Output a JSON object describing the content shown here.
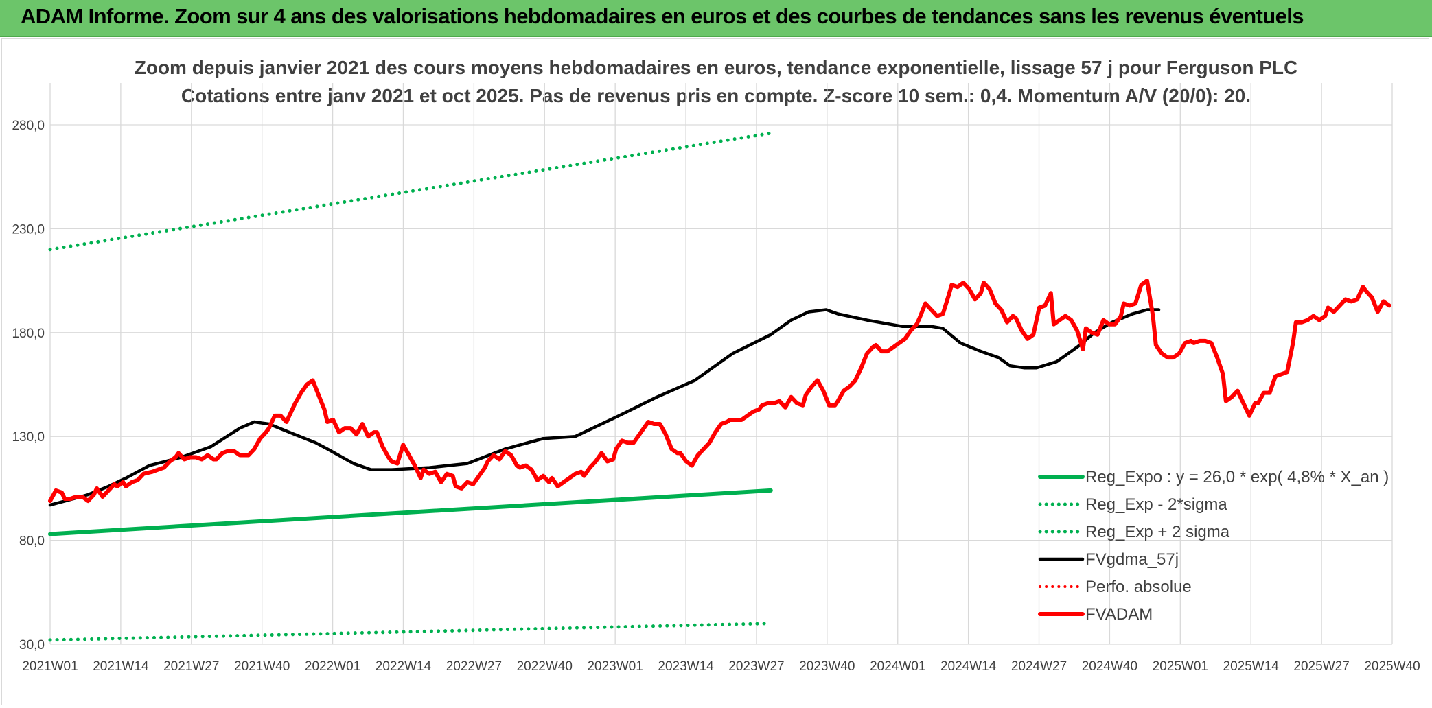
{
  "banner": {
    "title": "ADAM Informe. Zoom sur 4 ans des valorisations hebdomadaires en euros et des courbes de tendances sans les revenus éventuels"
  },
  "chart_data": {
    "type": "line",
    "title": "Zoom depuis janvier 2021 des cours moyens hebdomadaires en euros, tendance exponentielle, lissage 57 j pour Ferguson PLC",
    "subtitle": "Cotations entre janv 2021 et oct 2025. Pas de revenus pris en compte. Z-score 10 sem.: 0,4. Momentum A/V (20/0): 20.",
    "xlabel": "",
    "ylabel": "",
    "ylim": [
      30,
      280
    ],
    "yticks": [
      "280,0",
      "230,0",
      "180,0",
      "130,0",
      "80,0",
      "30,0"
    ],
    "ytick_values": [
      280,
      230,
      180,
      130,
      80,
      30
    ],
    "xticks": [
      "2021W01",
      "2021W14",
      "2021W27",
      "2021W40",
      "2022W01",
      "2022W14",
      "2022W27",
      "2022W40",
      "2023W01",
      "2023W14",
      "2023W27",
      "2023W40",
      "2024W01",
      "2024W14",
      "2024W27",
      "2024W40",
      "2025W01",
      "2025W14",
      "2025W27",
      "2025W40"
    ],
    "grid": true,
    "legend_position": "bottom-right",
    "series": [
      {
        "name": "Reg_Expo : y = 26,0 * exp( 4,8% *  X_an )",
        "color": "#00b050",
        "style": "solid",
        "points": [
          [
            0,
            83
          ],
          [
            247,
            104
          ]
        ]
      },
      {
        "name": "Reg_Exp - 2*sigma",
        "color": "#00b050",
        "style": "dotted",
        "points": [
          [
            0,
            32
          ],
          [
            247,
            40
          ]
        ]
      },
      {
        "name": "Reg_Exp + 2 sigma",
        "color": "#00b050",
        "style": "dotted",
        "points": [
          [
            0,
            220
          ],
          [
            247,
            276
          ]
        ]
      },
      {
        "name": "FVgdma_57j",
        "color": "#000000",
        "style": "solid",
        "points": [
          [
            0,
            97
          ],
          [
            8,
            100
          ],
          [
            13,
            102
          ],
          [
            20,
            106
          ],
          [
            26,
            110
          ],
          [
            34,
            116
          ],
          [
            45,
            120
          ],
          [
            55,
            125
          ],
          [
            65,
            134
          ],
          [
            70,
            137
          ],
          [
            75,
            136
          ],
          [
            82,
            132
          ],
          [
            91,
            127
          ],
          [
            95,
            124
          ],
          [
            104,
            117
          ],
          [
            110,
            114
          ],
          [
            117,
            114
          ],
          [
            130,
            115
          ],
          [
            143,
            117
          ],
          [
            156,
            124
          ],
          [
            169,
            129
          ],
          [
            180,
            130
          ],
          [
            195,
            140
          ],
          [
            208,
            149
          ],
          [
            221,
            157
          ],
          [
            234,
            170
          ],
          [
            247,
            179
          ],
          [
            254,
            186
          ],
          [
            260,
            190
          ],
          [
            266,
            191
          ],
          [
            270,
            189
          ],
          [
            280,
            186
          ],
          [
            292,
            183
          ],
          [
            302,
            183
          ],
          [
            306,
            182
          ],
          [
            312,
            175
          ],
          [
            319,
            171
          ],
          [
            325,
            168
          ],
          [
            329,
            164
          ],
          [
            334,
            163
          ],
          [
            338,
            163
          ],
          [
            345,
            166
          ],
          [
            352,
            173
          ],
          [
            358,
            180
          ],
          [
            364,
            185
          ],
          [
            371,
            189
          ],
          [
            376,
            191
          ],
          [
            380,
            191
          ]
        ]
      },
      {
        "name": "Perfo. absolue",
        "color": "#ff0000",
        "style": "dotted",
        "points": []
      },
      {
        "name": "FVADAM",
        "color": "#ff0000",
        "style": "solid",
        "points": [
          [
            0,
            99
          ],
          [
            2,
            104
          ],
          [
            4,
            103
          ],
          [
            5,
            100
          ],
          [
            7,
            100
          ],
          [
            9,
            101
          ],
          [
            11,
            101
          ],
          [
            13,
            99
          ],
          [
            15,
            102
          ],
          [
            16,
            105
          ],
          [
            18,
            101
          ],
          [
            20,
            104
          ],
          [
            22,
            107
          ],
          [
            23,
            106
          ],
          [
            25,
            108
          ],
          [
            26,
            106
          ],
          [
            28,
            108
          ],
          [
            30,
            109
          ],
          [
            32,
            112
          ],
          [
            35,
            113
          ],
          [
            37,
            114
          ],
          [
            39,
            115
          ],
          [
            41,
            118
          ],
          [
            43,
            120
          ],
          [
            44,
            122
          ],
          [
            46,
            119
          ],
          [
            48,
            120
          ],
          [
            50,
            120
          ],
          [
            52,
            119
          ],
          [
            54,
            121
          ],
          [
            56,
            119
          ],
          [
            57,
            119
          ],
          [
            59,
            122
          ],
          [
            61,
            123
          ],
          [
            63,
            123
          ],
          [
            65,
            121
          ],
          [
            68,
            121
          ],
          [
            70,
            124
          ],
          [
            72,
            129
          ],
          [
            74,
            132
          ],
          [
            75,
            134
          ],
          [
            77,
            140
          ],
          [
            79,
            140
          ],
          [
            81,
            137
          ],
          [
            82,
            140
          ],
          [
            84,
            146
          ],
          [
            86,
            151
          ],
          [
            88,
            155
          ],
          [
            90,
            157
          ],
          [
            92,
            150
          ],
          [
            94,
            143
          ],
          [
            95,
            137
          ],
          [
            97,
            138
          ],
          [
            99,
            132
          ],
          [
            101,
            134
          ],
          [
            103,
            134
          ],
          [
            105,
            131
          ],
          [
            107,
            136
          ],
          [
            109,
            130
          ],
          [
            111,
            132
          ],
          [
            112,
            132
          ],
          [
            114,
            125
          ],
          [
            116,
            120
          ],
          [
            117,
            118
          ],
          [
            119,
            117
          ],
          [
            121,
            126
          ],
          [
            123,
            121
          ],
          [
            125,
            116
          ],
          [
            127,
            110
          ],
          [
            128,
            114
          ],
          [
            130,
            112
          ],
          [
            132,
            113
          ],
          [
            134,
            108
          ],
          [
            136,
            112
          ],
          [
            138,
            111
          ],
          [
            139,
            106
          ],
          [
            141,
            105
          ],
          [
            143,
            108
          ],
          [
            145,
            107
          ],
          [
            147,
            111
          ],
          [
            149,
            115
          ],
          [
            150,
            118
          ],
          [
            152,
            121
          ],
          [
            154,
            119
          ],
          [
            156,
            123
          ],
          [
            158,
            121
          ],
          [
            160,
            116
          ],
          [
            161,
            115
          ],
          [
            163,
            116
          ],
          [
            165,
            114
          ],
          [
            167,
            109
          ],
          [
            169,
            111
          ],
          [
            171,
            108
          ],
          [
            172,
            110
          ],
          [
            174,
            106
          ],
          [
            176,
            108
          ],
          [
            178,
            110
          ],
          [
            180,
            112
          ],
          [
            182,
            113
          ],
          [
            183,
            111
          ],
          [
            185,
            115
          ],
          [
            187,
            118
          ],
          [
            189,
            122
          ],
          [
            191,
            118
          ],
          [
            193,
            119
          ],
          [
            194,
            124
          ],
          [
            196,
            128
          ],
          [
            198,
            127
          ],
          [
            200,
            127
          ],
          [
            202,
            131
          ],
          [
            204,
            135
          ],
          [
            205,
            137
          ],
          [
            207,
            136
          ],
          [
            209,
            136
          ],
          [
            211,
            131
          ],
          [
            213,
            124
          ],
          [
            215,
            122
          ],
          [
            216,
            122
          ],
          [
            218,
            118
          ],
          [
            220,
            116
          ],
          [
            222,
            121
          ],
          [
            224,
            124
          ],
          [
            226,
            127
          ],
          [
            228,
            132
          ],
          [
            230,
            136
          ],
          [
            232,
            137
          ],
          [
            233,
            138
          ],
          [
            235,
            138
          ],
          [
            237,
            138
          ],
          [
            239,
            140
          ],
          [
            241,
            142
          ],
          [
            243,
            143
          ],
          [
            244,
            145
          ],
          [
            246,
            146
          ],
          [
            248,
            146
          ],
          [
            250,
            147
          ],
          [
            252,
            144
          ],
          [
            254,
            149
          ],
          [
            256,
            146
          ],
          [
            258,
            145
          ],
          [
            259,
            150
          ],
          [
            261,
            154
          ],
          [
            263,
            157
          ],
          [
            265,
            152
          ],
          [
            267,
            145
          ],
          [
            269,
            145
          ],
          [
            270,
            147
          ],
          [
            272,
            152
          ],
          [
            274,
            154
          ],
          [
            276,
            157
          ],
          [
            278,
            163
          ],
          [
            280,
            170
          ],
          [
            282,
            173
          ],
          [
            283,
            174
          ],
          [
            285,
            171
          ],
          [
            287,
            171
          ],
          [
            289,
            173
          ],
          [
            291,
            175
          ],
          [
            293,
            177
          ],
          [
            295,
            181
          ],
          [
            297,
            184
          ],
          [
            298,
            187
          ],
          [
            300,
            194
          ],
          [
            302,
            191
          ],
          [
            304,
            188
          ],
          [
            306,
            189
          ],
          [
            308,
            198
          ],
          [
            309,
            203
          ],
          [
            311,
            202
          ],
          [
            313,
            204
          ],
          [
            315,
            201
          ],
          [
            317,
            196
          ],
          [
            319,
            199
          ],
          [
            320,
            204
          ],
          [
            322,
            201
          ],
          [
            324,
            194
          ],
          [
            326,
            191
          ],
          [
            328,
            185
          ],
          [
            330,
            188
          ],
          [
            331,
            187
          ],
          [
            333,
            181
          ],
          [
            335,
            177
          ],
          [
            337,
            179
          ],
          [
            339,
            192
          ],
          [
            341,
            193
          ],
          [
            343,
            199
          ],
          [
            344,
            184
          ],
          [
            346,
            186
          ],
          [
            348,
            188
          ],
          [
            350,
            186
          ],
          [
            352,
            181
          ],
          [
            354,
            172
          ],
          [
            355,
            182
          ],
          [
            357,
            180
          ],
          [
            359,
            179
          ],
          [
            361,
            186
          ],
          [
            363,
            184
          ],
          [
            365,
            184
          ],
          [
            367,
            188
          ],
          [
            368,
            194
          ],
          [
            370,
            193
          ],
          [
            372,
            194
          ],
          [
            374,
            203
          ],
          [
            376,
            205
          ],
          [
            378,
            188
          ],
          [
            379,
            174
          ],
          [
            381,
            170
          ],
          [
            383,
            168
          ],
          [
            385,
            168
          ],
          [
            387,
            170
          ],
          [
            389,
            175
          ],
          [
            391,
            176
          ],
          [
            392,
            175
          ],
          [
            394,
            176
          ],
          [
            396,
            176
          ],
          [
            398,
            175
          ],
          [
            400,
            168
          ],
          [
            402,
            160
          ],
          [
            403,
            147
          ],
          [
            405,
            149
          ],
          [
            407,
            152
          ],
          [
            409,
            146
          ],
          [
            411,
            140
          ],
          [
            413,
            146
          ],
          [
            414,
            146
          ],
          [
            416,
            151
          ],
          [
            418,
            151
          ],
          [
            420,
            159
          ],
          [
            422,
            160
          ],
          [
            424,
            161
          ],
          [
            426,
            175
          ],
          [
            427,
            185
          ],
          [
            429,
            185
          ],
          [
            431,
            186
          ],
          [
            433,
            188
          ],
          [
            435,
            186
          ],
          [
            437,
            188
          ],
          [
            438,
            192
          ],
          [
            440,
            190
          ],
          [
            442,
            193
          ],
          [
            444,
            196
          ],
          [
            446,
            195
          ],
          [
            448,
            196
          ],
          [
            450,
            202
          ],
          [
            451,
            200
          ],
          [
            453,
            197
          ],
          [
            455,
            190
          ],
          [
            457,
            195
          ],
          [
            459,
            193
          ]
        ]
      }
    ]
  }
}
